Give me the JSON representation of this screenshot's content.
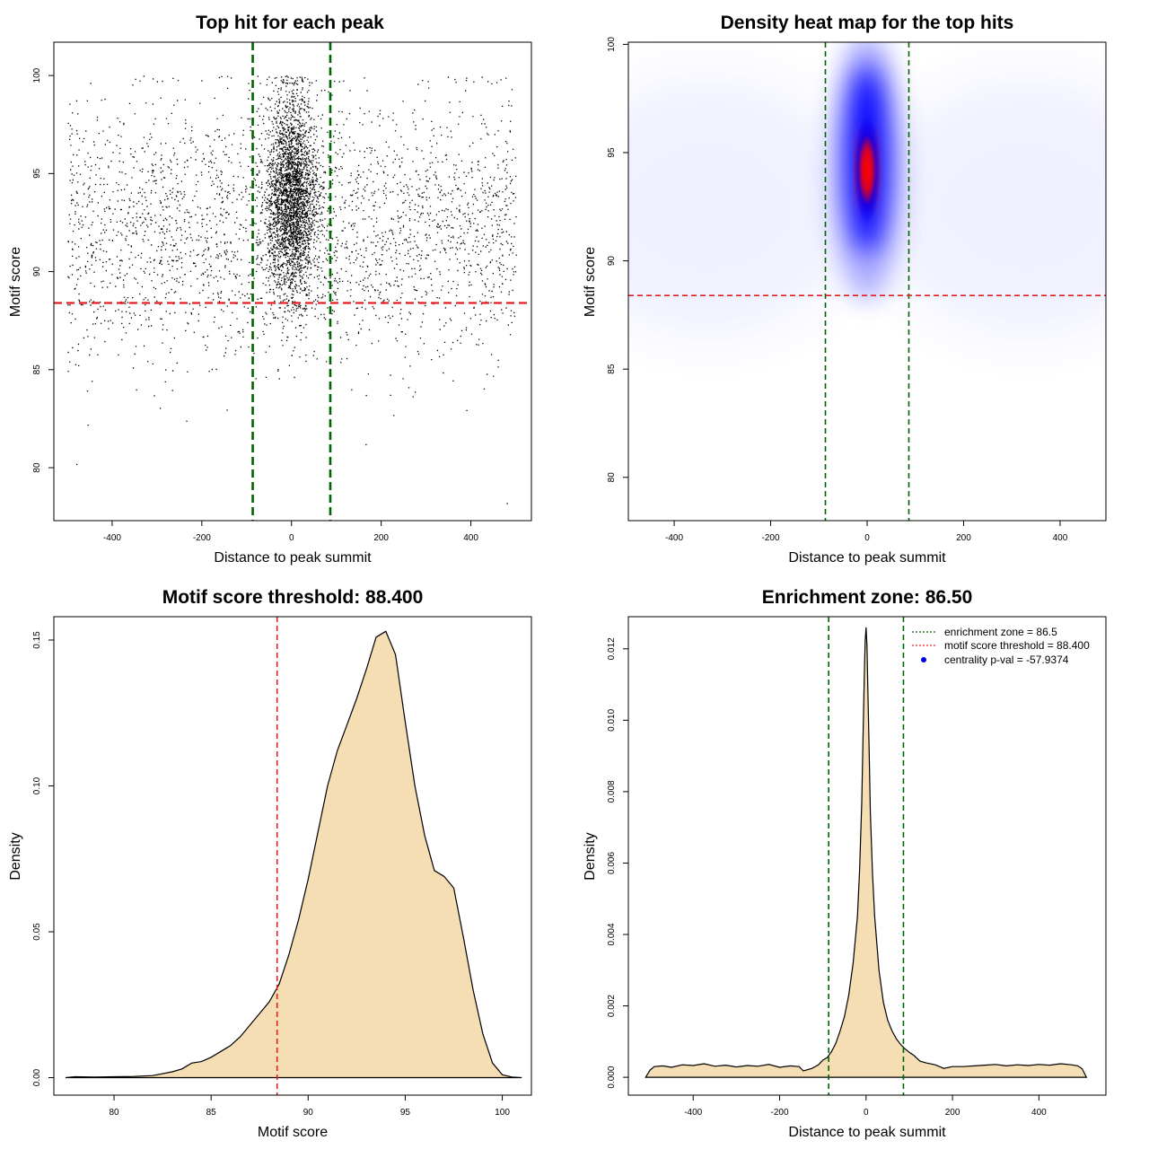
{
  "chart_data": [
    {
      "type": "scatter",
      "title": "Top hit for each peak",
      "xlabel": "Distance to peak summit",
      "ylabel": "Motif score",
      "xlim": [
        -530,
        535
      ],
      "ylim": [
        77.3,
        101.7
      ],
      "xticks": [
        -400,
        -200,
        0,
        200,
        400
      ],
      "yticks": [
        80,
        85,
        90,
        95,
        100
      ],
      "xtick_labels": [
        "-400",
        "-200",
        "0",
        "200",
        "400"
      ],
      "ytick_labels": [
        "80",
        "85",
        "90",
        "95",
        "100"
      ],
      "vlines": [
        -86.5,
        86.5
      ],
      "hline": 88.4,
      "vline_color": "#006400",
      "hline_color": "#e02020",
      "point_color": "#000000",
      "background_n": 2700,
      "central_n": 5000,
      "background_mean": 92.2,
      "background_sd": 3.2,
      "central_mean": 93.8,
      "central_sd": 2.6,
      "central_sd_x": 28,
      "x_range": [
        -500,
        500
      ],
      "outliers": [
        {
          "x": -480,
          "y": 80.2
        },
        {
          "x": 480,
          "y": 78.2
        },
        {
          "x": 165,
          "y": 81.2
        },
        {
          "x": -235,
          "y": 82.4
        },
        {
          "x": -455,
          "y": 82.2
        }
      ]
    },
    {
      "type": "heatmap",
      "title": "Density heat map for the top hits",
      "xlabel": "Distance to peak summit",
      "ylabel": "Motif score",
      "xlim": [
        -495,
        495
      ],
      "ylim": [
        78,
        100.1
      ],
      "xticks": [
        -400,
        -200,
        0,
        200,
        400
      ],
      "yticks": [
        80,
        85,
        90,
        95,
        100
      ],
      "xtick_labels": [
        "-400",
        "-200",
        "0",
        "200",
        "400"
      ],
      "ytick_labels": [
        "80",
        "85",
        "90",
        "95",
        "100"
      ],
      "vlines": [
        -86.5,
        86.5
      ],
      "hline": 88.4,
      "vline_color": "#006400",
      "hline_color": "#e02020",
      "color_scale": [
        "#ffffff",
        "#0000ff",
        "#ff0000"
      ],
      "peak_center": {
        "x": 0,
        "y": 94.2
      }
    },
    {
      "type": "area",
      "title": "Motif score threshold: 88.400",
      "xlabel": "Motif score",
      "ylabel": "Density",
      "xlim": [
        76.9,
        101.5
      ],
      "ylim": [
        -0.006,
        0.158
      ],
      "xticks": [
        80,
        85,
        90,
        95,
        100
      ],
      "yticks": [
        0,
        0.05,
        0.1,
        0.15
      ],
      "xtick_labels": [
        "80",
        "85",
        "90",
        "95",
        "100"
      ],
      "ytick_labels": [
        "0.00",
        "0.05",
        "0.10",
        "0.15"
      ],
      "vline": 88.4,
      "vline_color": "#e02020",
      "fill": "#f5deb3",
      "x": [
        77.5,
        78,
        79,
        80,
        81,
        82,
        83,
        83.5,
        84,
        84.5,
        85,
        85.5,
        86,
        86.5,
        87,
        87.5,
        88,
        88.5,
        89,
        89.5,
        90,
        90.5,
        91,
        91.5,
        92,
        92.5,
        93,
        93.5,
        94,
        94.5,
        95,
        95.5,
        96,
        96.5,
        97,
        97.5,
        98,
        98.5,
        99,
        99.5,
        100,
        100.5,
        101
      ],
      "y": [
        0.0,
        0.0003,
        0.0002,
        0.0003,
        0.0004,
        0.0007,
        0.002,
        0.003,
        0.005,
        0.0055,
        0.007,
        0.009,
        0.011,
        0.014,
        0.018,
        0.022,
        0.026,
        0.032,
        0.042,
        0.054,
        0.068,
        0.084,
        0.1,
        0.112,
        0.121,
        0.13,
        0.14,
        0.151,
        0.153,
        0.145,
        0.122,
        0.1,
        0.083,
        0.071,
        0.069,
        0.065,
        0.048,
        0.03,
        0.015,
        0.005,
        0.001,
        0.0002,
        0.0
      ]
    },
    {
      "type": "area",
      "title": "Enrichment zone: 86.50",
      "xlabel": "Distance to peak summit",
      "ylabel": "Density",
      "xlim": [
        -550,
        555
      ],
      "ylim": [
        -0.0005,
        0.0129
      ],
      "xticks": [
        -400,
        -200,
        0,
        200,
        400
      ],
      "yticks": [
        0,
        0.002,
        0.004,
        0.006,
        0.008,
        0.01,
        0.012
      ],
      "xtick_labels": [
        "-400",
        "-200",
        "0",
        "200",
        "400"
      ],
      "ytick_labels": [
        "0.000",
        "0.002",
        "0.004",
        "0.006",
        "0.008",
        "0.010",
        "0.012"
      ],
      "vlines": [
        -86.5,
        86.5
      ],
      "vline_color": "#006400",
      "fill": "#f5deb3",
      "x": [
        -510,
        -500,
        -490,
        -470,
        -450,
        -425,
        -400,
        -375,
        -350,
        -325,
        -300,
        -275,
        -250,
        -225,
        -200,
        -175,
        -155,
        -145,
        -125,
        -110,
        -100,
        -90,
        -80,
        -70,
        -60,
        -50,
        -40,
        -30,
        -20,
        -15,
        -10,
        -7,
        -4,
        -2,
        0,
        2,
        4,
        7,
        10,
        15,
        20,
        30,
        40,
        50,
        60,
        70,
        80,
        90,
        100,
        110,
        125,
        140,
        160,
        180,
        200,
        225,
        250,
        275,
        300,
        325,
        350,
        375,
        400,
        425,
        450,
        475,
        490,
        500,
        510
      ],
      "y": [
        0.0,
        0.0002,
        0.0003,
        0.00032,
        0.00028,
        0.00035,
        0.00033,
        0.00038,
        0.00031,
        0.00034,
        0.00029,
        0.00033,
        0.00031,
        0.00036,
        0.00028,
        0.00032,
        0.0003,
        0.00018,
        0.00025,
        0.00035,
        0.00048,
        0.00055,
        0.00072,
        0.00095,
        0.0013,
        0.0017,
        0.0023,
        0.0032,
        0.0045,
        0.0058,
        0.0077,
        0.0095,
        0.0113,
        0.0122,
        0.0126,
        0.0121,
        0.011,
        0.0092,
        0.0074,
        0.0057,
        0.0045,
        0.003,
        0.0021,
        0.0016,
        0.0013,
        0.00108,
        0.00092,
        0.0008,
        0.0007,
        0.00062,
        0.00045,
        0.0004,
        0.00035,
        0.00025,
        0.0003,
        0.0003,
        0.00032,
        0.00034,
        0.00036,
        0.00032,
        0.00035,
        0.00033,
        0.00036,
        0.00034,
        0.00038,
        0.00035,
        0.00032,
        0.00024,
        0.0
      ],
      "legend": [
        {
          "label": "enrichment zone = 86.5",
          "style": "line",
          "color": "#006400"
        },
        {
          "label": "motif score threshold = 88.400",
          "style": "line",
          "color": "#e02020"
        },
        {
          "label": "centrality p-val = -57.9374",
          "style": "dot",
          "color": "#0000ee"
        }
      ]
    }
  ]
}
